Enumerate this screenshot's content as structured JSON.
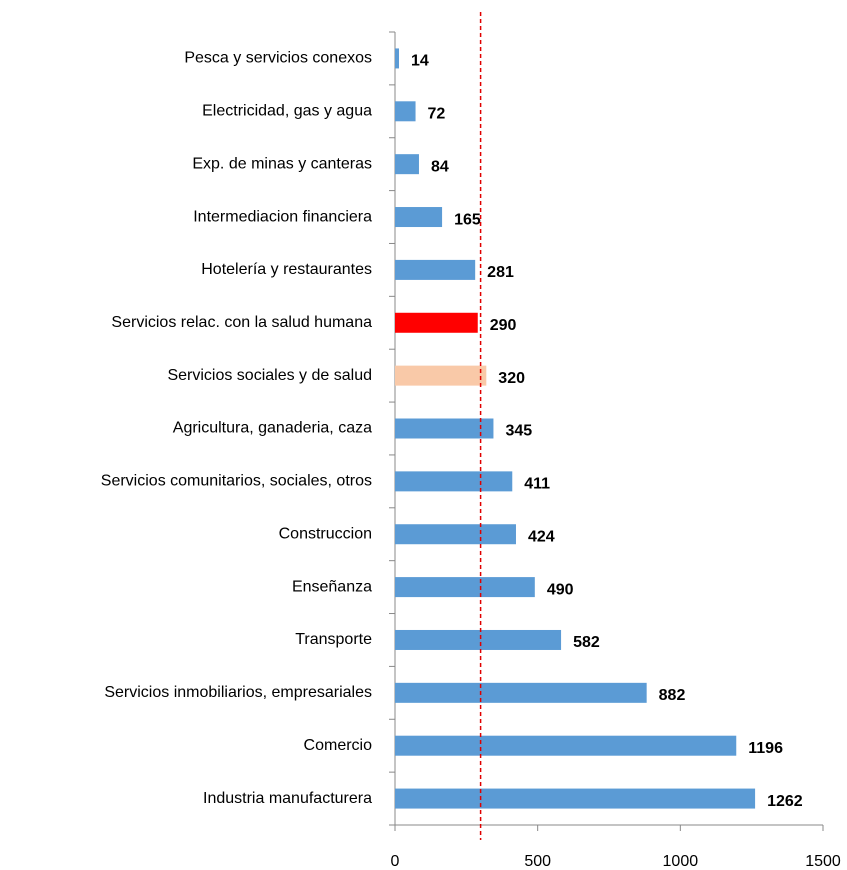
{
  "chart_data": {
    "type": "barh",
    "categories": [
      "Pesca y servicios conexos",
      "Electricidad, gas y agua",
      "Exp. de minas y canteras",
      "Intermediacion financiera",
      "Hotelería y restaurantes",
      "Servicios relac. con la salud humana",
      "Servicios sociales y de salud",
      "Agricultura, ganaderia, caza",
      "Servicios comunitarios, sociales, otros",
      "Construccion",
      "Enseñanza",
      "Transporte",
      "Servicios inmobiliarios, empresariales",
      "Comercio",
      "Industria manufacturera"
    ],
    "values": [
      14,
      72,
      84,
      165,
      281,
      290,
      320,
      345,
      411,
      424,
      490,
      582,
      882,
      1196,
      1262
    ],
    "colors": [
      "#5b9bd5",
      "#5b9bd5",
      "#5b9bd5",
      "#5b9bd5",
      "#5b9bd5",
      "#ff0000",
      "#f9c9a8",
      "#5b9bd5",
      "#5b9bd5",
      "#5b9bd5",
      "#5b9bd5",
      "#5b9bd5",
      "#5b9bd5",
      "#5b9bd5",
      "#5b9bd5"
    ],
    "xlim": [
      0,
      1500
    ],
    "xticks": [
      0,
      500,
      1000,
      1500
    ],
    "reference_line": {
      "value": 300,
      "color": "#e00000"
    }
  }
}
